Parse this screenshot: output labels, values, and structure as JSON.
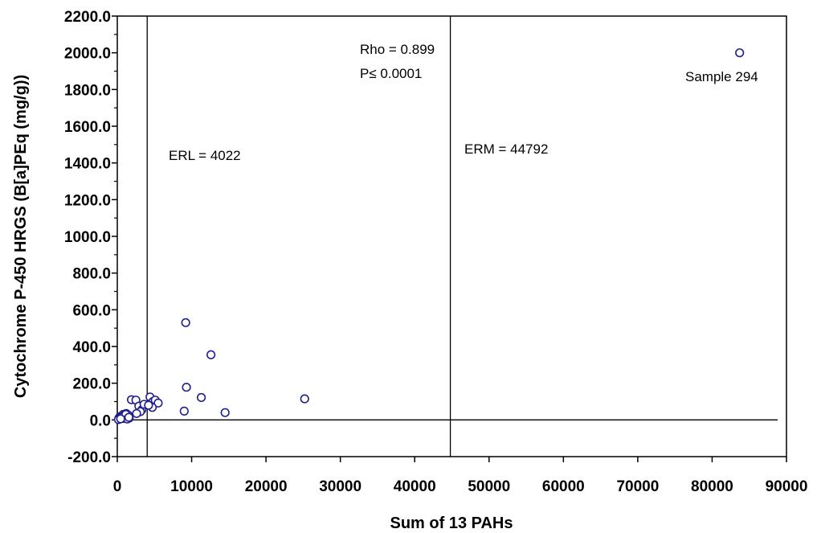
{
  "chart_data": {
    "type": "scatter",
    "title": "",
    "xlabel": "Sum of 13 PAHs",
    "ylabel": "Cytochrome P-450 HRGS (B[a]PEq (mg/g))",
    "xlim": [
      0,
      90000
    ],
    "ylim": [
      -200,
      2200
    ],
    "x_ticks": [
      0,
      10000,
      20000,
      30000,
      40000,
      50000,
      60000,
      70000,
      80000,
      90000
    ],
    "x_tick_labels": [
      "0",
      "10000",
      "20000",
      "30000",
      "40000",
      "50000",
      "60000",
      "70000",
      "80000",
      "90000"
    ],
    "y_ticks": [
      -200,
      0,
      200,
      400,
      600,
      800,
      1000,
      1200,
      1400,
      1600,
      1800,
      2000,
      2200
    ],
    "y_tick_labels": [
      "-200.0",
      "0.0",
      "200.0",
      "400.0",
      "600.0",
      "800.0",
      "1000.0",
      "1200.0",
      "1400.0",
      "1600.0",
      "1800.0",
      "2000.0",
      "2200.0"
    ],
    "grid": false,
    "marker_color": "#1f1f8f",
    "reference_lines": [
      {
        "orientation": "vertical",
        "x": 4022,
        "label": "ERL = 4022"
      },
      {
        "orientation": "vertical",
        "x": 44792,
        "label": "ERM = 44792"
      },
      {
        "orientation": "horizontal",
        "y": 0,
        "label": ""
      }
    ],
    "annotations": {
      "stat_line1": "Rho = 0.899",
      "stat_line2": "P≤ 0.0001",
      "outlier_label": "Sample 294"
    },
    "series": [
      {
        "x": [
          83700,
          9200,
          12600,
          9300,
          11300,
          25200,
          9000,
          14500,
          1900,
          2500,
          2900,
          3300,
          3600,
          4400,
          4800,
          5100,
          5500,
          4700,
          4200,
          3100,
          2600,
          200,
          300,
          400,
          500,
          600,
          700,
          800,
          900,
          1000,
          1100,
          1200,
          1300,
          1400,
          1500,
          1600,
          350,
          550,
          750,
          950,
          1150,
          1350,
          1550,
          150,
          450
        ],
        "y": [
          2000,
          530,
          355,
          178,
          122,
          115,
          48,
          40,
          110,
          108,
          75,
          55,
          85,
          125,
          100,
          108,
          92,
          68,
          80,
          45,
          35,
          8,
          15,
          10,
          20,
          12,
          25,
          30,
          18,
          28,
          22,
          35,
          20,
          15,
          25,
          10,
          5,
          12,
          18,
          8,
          30,
          5,
          14,
          2,
          6
        ]
      }
    ]
  }
}
